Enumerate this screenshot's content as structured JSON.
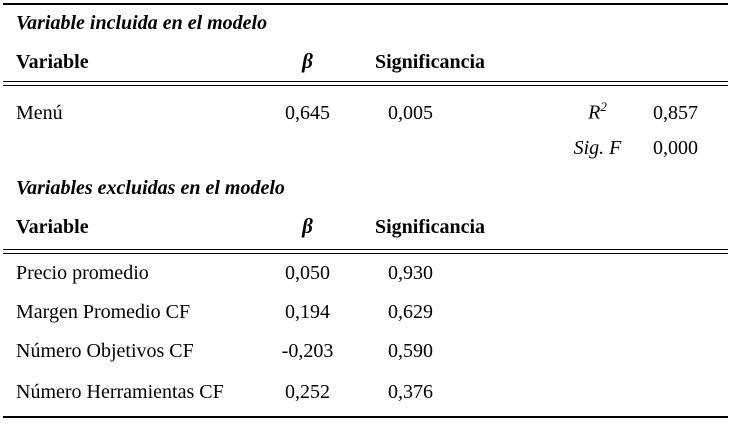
{
  "colors": {
    "text": "#000000",
    "background": "#ffffff",
    "rule": "#000000"
  },
  "section1": {
    "title": "Variable incluida en el modelo",
    "headers": {
      "variable": "Variable",
      "beta": "β",
      "significance": "Significancia"
    },
    "rows": [
      {
        "variable": "Menú",
        "beta": "0,645",
        "significance": "0,005",
        "stat_label": "R",
        "stat_sup": "2",
        "stat_value": "0,857"
      },
      {
        "variable": "",
        "beta": "",
        "significance": "",
        "stat_label": "Sig. F",
        "stat_value": "0,000"
      }
    ]
  },
  "section2": {
    "title": "Variables excluidas en el modelo",
    "headers": {
      "variable": "Variable",
      "beta": "β",
      "significance": "Significancia"
    },
    "rows": [
      {
        "variable": "Precio promedio",
        "beta": "0,050",
        "significance": "0,930"
      },
      {
        "variable": "Margen Promedio CF",
        "beta": "0,194",
        "significance": "0,629"
      },
      {
        "variable": "Número Objetivos CF",
        "beta": "-0,203",
        "significance": "0,590"
      },
      {
        "variable": "Número Herramientas CF",
        "beta": "0,252",
        "significance": "0,376"
      }
    ]
  }
}
